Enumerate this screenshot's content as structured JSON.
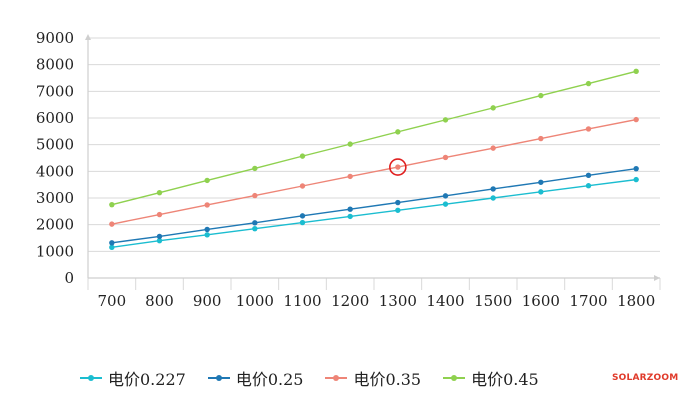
{
  "chart_data": {
    "type": "line",
    "x": [
      700,
      800,
      900,
      1000,
      1100,
      1200,
      1300,
      1400,
      1500,
      1600,
      1700,
      1800
    ],
    "ylim": [
      0,
      9000
    ],
    "yticks": [
      0,
      1000,
      2000,
      3000,
      4000,
      5000,
      6000,
      7000,
      8000,
      9000
    ],
    "grid": true,
    "legend_position": "bottom",
    "series": [
      {
        "name": "电价0.227",
        "color": "#1bbdd0",
        "values": [
          1150,
          1400,
          1620,
          1850,
          2080,
          2310,
          2540,
          2770,
          3000,
          3230,
          3460,
          3690
        ]
      },
      {
        "name": "电价0.25",
        "color": "#1f78b4",
        "values": [
          1320,
          1560,
          1820,
          2070,
          2330,
          2580,
          2830,
          3080,
          3340,
          3590,
          3850,
          4100
        ]
      },
      {
        "name": "电价0.35",
        "color": "#ee8577",
        "values": [
          2020,
          2380,
          2740,
          3090,
          3450,
          3810,
          4160,
          4520,
          4870,
          5230,
          5590,
          5940
        ]
      },
      {
        "name": "电价0.45",
        "color": "#8fd14f",
        "values": [
          2750,
          3200,
          3660,
          4110,
          4570,
          5020,
          5480,
          5930,
          6380,
          6840,
          7290,
          7750
        ]
      }
    ],
    "annotations": [
      {
        "type": "circle-marker",
        "color": "#e02020",
        "x": 1300,
        "y": 4160,
        "series": "电价0.35"
      }
    ]
  },
  "watermark": "SOLARZOOM"
}
